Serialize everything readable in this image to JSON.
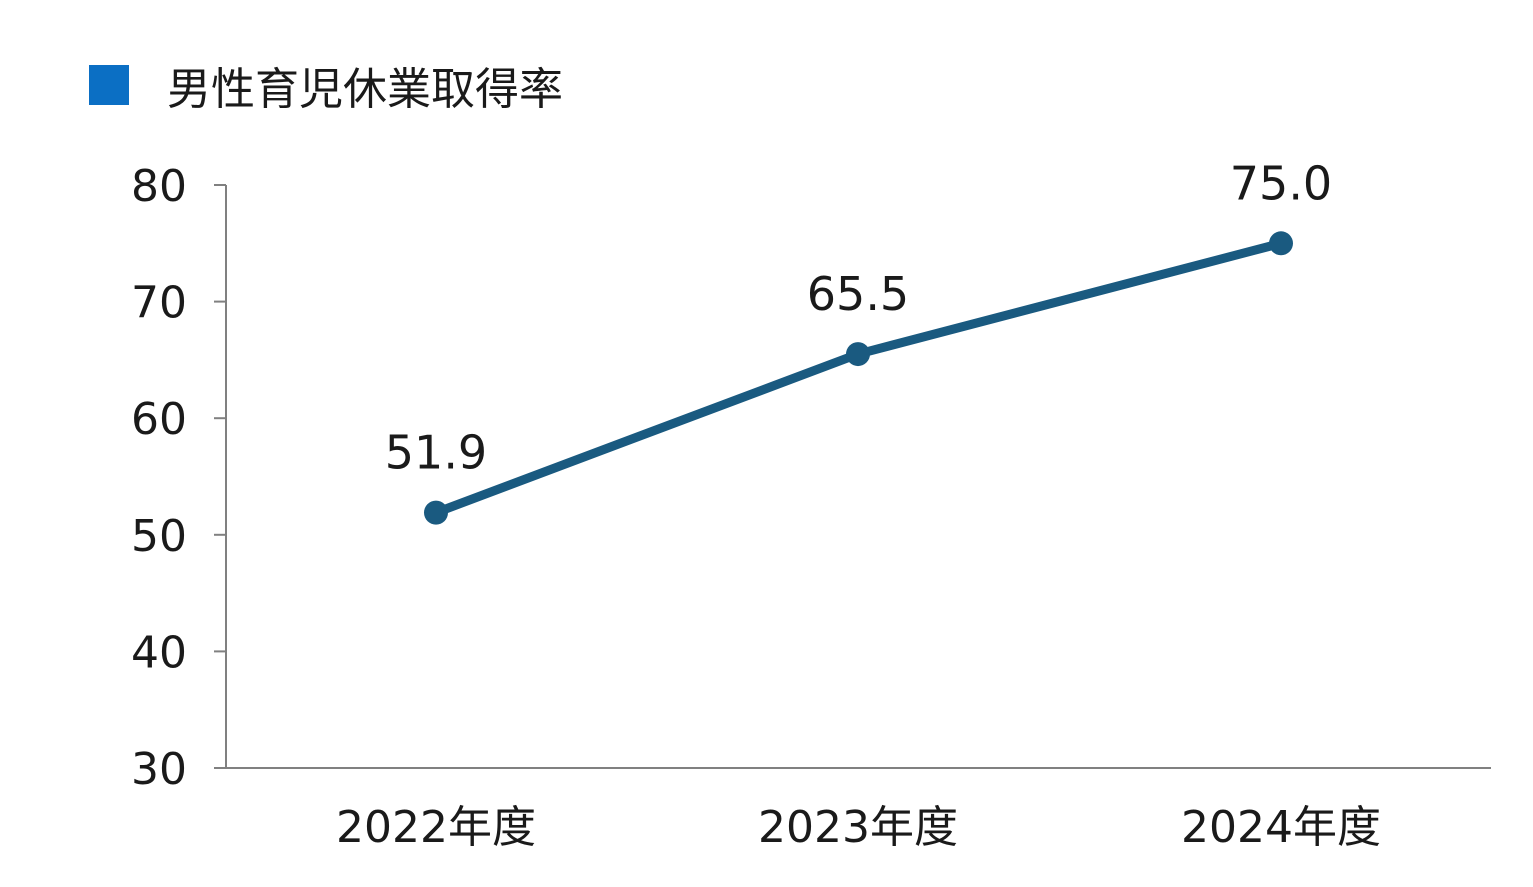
{
  "chart_data": {
    "type": "line",
    "title": "",
    "xlabel": "",
    "ylabel": "",
    "categories": [
      "2022年度",
      "2023年度",
      "2024年度"
    ],
    "series": [
      {
        "name": "男性育児休業取得率",
        "values": [
          51.9,
          65.5,
          75.0
        ],
        "labels": [
          "51.9",
          "65.5",
          "75.0"
        ]
      }
    ],
    "ylim": [
      30,
      80
    ],
    "yticks": [
      30,
      40,
      50,
      60,
      70,
      80
    ],
    "grid": false,
    "legend": "top-left"
  },
  "colors": {
    "line": "#1a5a80",
    "legend_swatch": "#0b6fc4",
    "axis": "#808080",
    "text": "#1a1a1a"
  }
}
